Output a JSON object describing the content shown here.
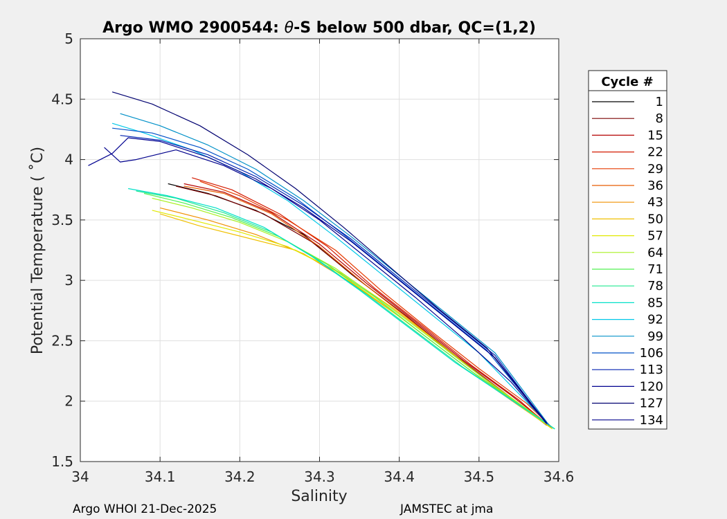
{
  "chart_data": {
    "type": "line",
    "title": "Argo WMO 2900544: θ-S below 500 dbar,  QC=(1,2)",
    "title_parts": {
      "prefix": "Argo WMO 2900544: ",
      "theta": "θ",
      "suffix": "-S below 500 dbar,  QC=(1,2)"
    },
    "xlabel": "Salinity",
    "ylabel": "Potential Temperature ( ˚C)",
    "xlim": [
      34.0,
      34.6
    ],
    "ylim": [
      1.5,
      5.0
    ],
    "grid": true,
    "xticks": [
      34.0,
      34.1,
      34.2,
      34.3,
      34.4,
      34.5,
      34.6
    ],
    "xtick_labels": [
      "34",
      "34.1",
      "34.2",
      "34.3",
      "34.4",
      "34.5",
      "34.6"
    ],
    "yticks": [
      1.5,
      2.0,
      2.5,
      3.0,
      3.5,
      4.0,
      4.5,
      5.0
    ],
    "ytick_labels": [
      "1.5",
      "2",
      "2.5",
      "3",
      "3.5",
      "4",
      "4.5",
      "5"
    ],
    "legend": {
      "title": "Cycle #",
      "position": "outside-right",
      "entries": [
        {
          "label": "1",
          "color": "#000000"
        },
        {
          "label": "8",
          "color": "#7a0000"
        },
        {
          "label": "15",
          "color": "#b40000"
        },
        {
          "label": "22",
          "color": "#d41a00"
        },
        {
          "label": "29",
          "color": "#e63a00"
        },
        {
          "label": "36",
          "color": "#e85c00"
        },
        {
          "label": "43",
          "color": "#f09000"
        },
        {
          "label": "50",
          "color": "#f0c000"
        },
        {
          "label": "57",
          "color": "#e0e800"
        },
        {
          "label": "64",
          "color": "#a8f020"
        },
        {
          "label": "71",
          "color": "#50f050"
        },
        {
          "label": "78",
          "color": "#20e890"
        },
        {
          "label": "85",
          "color": "#00e0c8"
        },
        {
          "label": "92",
          "color": "#00c8e8"
        },
        {
          "label": "99",
          "color": "#0090c8"
        },
        {
          "label": "106",
          "color": "#0050c8"
        },
        {
          "label": "113",
          "color": "#0020b0"
        },
        {
          "label": "120",
          "color": "#000090"
        },
        {
          "label": "127",
          "color": "#000070"
        },
        {
          "label": "134",
          "color": "#00008c"
        }
      ]
    },
    "series": [
      {
        "name": "1",
        "color": "#000000",
        "x": [
          34.11,
          34.16,
          34.22,
          34.28,
          34.34,
          34.4,
          34.46,
          34.52,
          34.585
        ],
        "y": [
          3.8,
          3.72,
          3.58,
          3.38,
          3.05,
          2.75,
          2.42,
          2.12,
          1.8
        ]
      },
      {
        "name": "8",
        "color": "#7a0000",
        "x": [
          34.12,
          34.17,
          34.23,
          34.29,
          34.35,
          34.41,
          34.47,
          34.53,
          34.585
        ],
        "y": [
          3.78,
          3.7,
          3.55,
          3.32,
          3.0,
          2.7,
          2.38,
          2.08,
          1.8
        ]
      },
      {
        "name": "15",
        "color": "#b40000",
        "x": [
          34.13,
          34.18,
          34.24,
          34.3,
          34.36,
          34.42,
          34.48,
          34.54,
          34.59
        ],
        "y": [
          3.8,
          3.73,
          3.56,
          3.3,
          2.97,
          2.66,
          2.34,
          2.05,
          1.79
        ]
      },
      {
        "name": "22",
        "color": "#d41a00",
        "x": [
          34.14,
          34.19,
          34.25,
          34.31,
          34.37,
          34.43,
          34.49,
          34.55,
          34.59
        ],
        "y": [
          3.85,
          3.75,
          3.55,
          3.28,
          2.93,
          2.62,
          2.3,
          2.01,
          1.78
        ]
      },
      {
        "name": "29",
        "color": "#e63a00",
        "x": [
          34.15,
          34.2,
          34.26,
          34.32,
          34.38,
          34.44,
          34.5,
          34.56,
          34.592
        ],
        "y": [
          3.82,
          3.7,
          3.5,
          3.25,
          2.9,
          2.58,
          2.27,
          1.98,
          1.78
        ]
      },
      {
        "name": "36",
        "color": "#e85c00",
        "x": [
          34.13,
          34.18,
          34.24,
          34.3,
          34.36,
          34.42,
          34.48,
          34.54,
          34.592
        ],
        "y": [
          3.78,
          3.72,
          3.55,
          3.28,
          2.95,
          2.64,
          2.32,
          2.03,
          1.78
        ]
      },
      {
        "name": "43",
        "color": "#f09000",
        "x": [
          34.1,
          34.16,
          34.22,
          34.28,
          34.34,
          34.4,
          34.46,
          34.52,
          34.59
        ],
        "y": [
          3.6,
          3.5,
          3.38,
          3.22,
          2.98,
          2.7,
          2.4,
          2.1,
          1.78
        ]
      },
      {
        "name": "50",
        "color": "#f0c000",
        "x": [
          34.1,
          34.15,
          34.21,
          34.27,
          34.33,
          34.39,
          34.45,
          34.51,
          34.59
        ],
        "y": [
          3.55,
          3.45,
          3.35,
          3.25,
          3.05,
          2.78,
          2.48,
          2.17,
          1.78
        ]
      },
      {
        "name": "57",
        "color": "#e0e800",
        "x": [
          34.09,
          34.14,
          34.2,
          34.26,
          34.32,
          34.38,
          34.44,
          34.5,
          34.592
        ],
        "y": [
          3.58,
          3.5,
          3.4,
          3.28,
          3.08,
          2.8,
          2.5,
          2.2,
          1.77
        ]
      },
      {
        "name": "64",
        "color": "#a8f020",
        "x": [
          34.09,
          34.14,
          34.2,
          34.26,
          34.32,
          34.38,
          34.44,
          34.5,
          34.595
        ],
        "y": [
          3.68,
          3.6,
          3.48,
          3.32,
          3.1,
          2.82,
          2.52,
          2.22,
          1.77
        ]
      },
      {
        "name": "71",
        "color": "#50f050",
        "x": [
          34.08,
          34.13,
          34.19,
          34.25,
          34.31,
          34.37,
          34.43,
          34.49,
          34.595
        ],
        "y": [
          3.72,
          3.64,
          3.52,
          3.36,
          3.13,
          2.86,
          2.55,
          2.25,
          1.77
        ]
      },
      {
        "name": "78",
        "color": "#20e890",
        "x": [
          34.07,
          34.12,
          34.18,
          34.24,
          34.3,
          34.36,
          34.42,
          34.48,
          34.595
        ],
        "y": [
          3.74,
          3.68,
          3.56,
          3.4,
          3.16,
          2.88,
          2.58,
          2.28,
          1.77
        ]
      },
      {
        "name": "85",
        "color": "#00e0c8",
        "x": [
          34.06,
          34.11,
          34.17,
          34.23,
          34.29,
          34.35,
          34.41,
          34.47,
          34.595
        ],
        "y": [
          3.76,
          3.7,
          3.6,
          3.44,
          3.2,
          2.92,
          2.62,
          2.32,
          1.77
        ]
      },
      {
        "name": "92",
        "color": "#00c8e8",
        "x": [
          34.04,
          34.08,
          34.14,
          34.2,
          34.26,
          34.32,
          34.38,
          34.44,
          34.5,
          34.59
        ],
        "y": [
          4.3,
          4.22,
          4.08,
          3.9,
          3.66,
          3.36,
          3.04,
          2.72,
          2.4,
          1.79
        ]
      },
      {
        "name": "99",
        "color": "#0090c8",
        "x": [
          34.05,
          34.1,
          34.16,
          34.22,
          34.28,
          34.34,
          34.4,
          34.46,
          34.52,
          34.588
        ],
        "y": [
          4.38,
          4.28,
          4.12,
          3.92,
          3.66,
          3.36,
          3.04,
          2.72,
          2.4,
          1.8
        ]
      },
      {
        "name": "106",
        "color": "#0050c8",
        "x": [
          34.04,
          34.09,
          34.15,
          34.21,
          34.27,
          34.33,
          34.39,
          34.45,
          34.51,
          34.586
        ],
        "y": [
          4.26,
          4.22,
          4.1,
          3.92,
          3.68,
          3.38,
          3.06,
          2.74,
          2.42,
          1.81
        ]
      },
      {
        "name": "113",
        "color": "#0020b0",
        "x": [
          34.05,
          34.1,
          34.16,
          34.22,
          34.28,
          34.34,
          34.4,
          34.46,
          34.52,
          34.585
        ],
        "y": [
          4.2,
          4.16,
          4.04,
          3.86,
          3.62,
          3.34,
          3.02,
          2.7,
          2.38,
          1.81
        ]
      },
      {
        "name": "120",
        "color": "#000090",
        "x": [
          34.01,
          34.04,
          34.06,
          34.1,
          34.16,
          34.22,
          34.28,
          34.34,
          34.4,
          34.46,
          34.52,
          34.585
        ],
        "y": [
          3.95,
          4.05,
          4.18,
          4.15,
          4.02,
          3.84,
          3.6,
          3.32,
          3.0,
          2.68,
          2.36,
          1.82
        ]
      },
      {
        "name": "127",
        "color": "#000070",
        "x": [
          34.04,
          34.09,
          34.15,
          34.21,
          34.27,
          34.33,
          34.39,
          34.45,
          34.51,
          34.584
        ],
        "y": [
          4.56,
          4.46,
          4.28,
          4.04,
          3.76,
          3.44,
          3.1,
          2.76,
          2.44,
          1.82
        ]
      },
      {
        "name": "134",
        "color": "#00008c",
        "x": [
          34.03,
          34.05,
          34.07,
          34.12,
          34.18,
          34.24,
          34.3,
          34.36,
          34.42,
          34.48,
          34.54,
          34.583
        ],
        "y": [
          4.1,
          3.98,
          4.0,
          4.08,
          3.95,
          3.76,
          3.5,
          3.18,
          2.86,
          2.52,
          2.16,
          1.83
        ]
      }
    ]
  },
  "footer": {
    "left": "Argo WHOI 21-Dec-2025",
    "right": "JAMSTEC at jma"
  }
}
